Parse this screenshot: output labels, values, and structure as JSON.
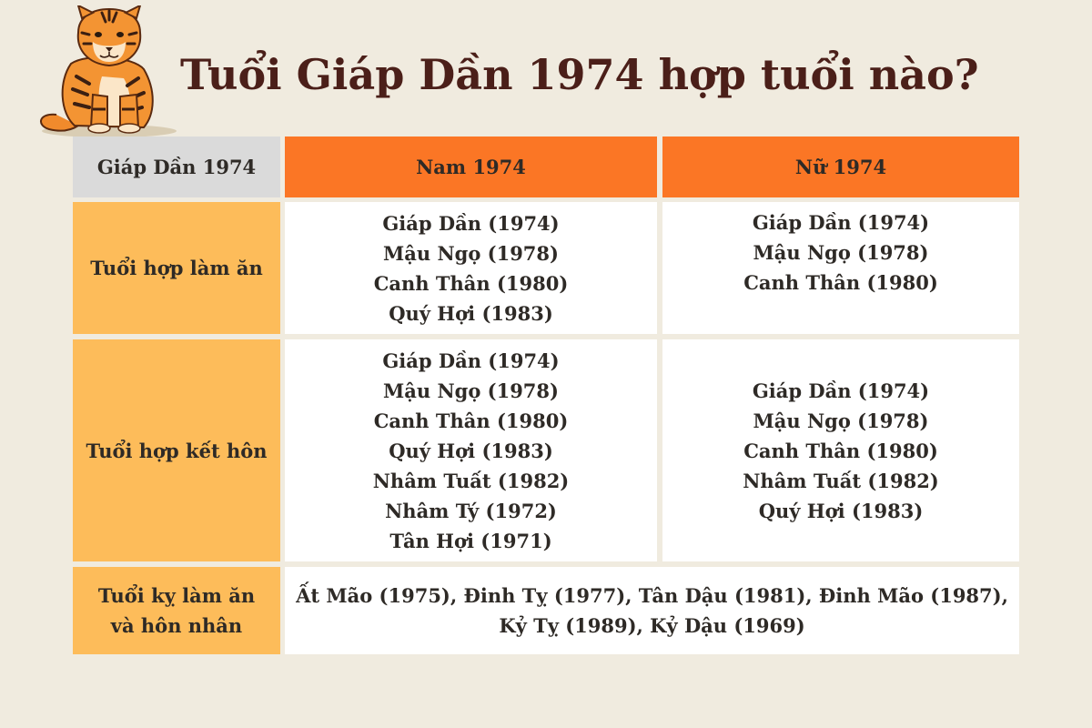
{
  "title": "Tuổi Giáp Dần 1974 hợp tuổi nào?",
  "table": {
    "header": {
      "col0": "Giáp Dần 1974",
      "col1": "Nam 1974",
      "col2": "Nữ 1974"
    },
    "rows": [
      {
        "label": "Tuổi hợp làm ăn",
        "male": [
          "Giáp Dần (1974)",
          "Mậu Ngọ (1978)",
          "Canh Thân (1980)",
          "Quý Hợi (1983)"
        ],
        "female": [
          "Giáp Dần (1974)",
          "Mậu Ngọ (1978)",
          "Canh Thân (1980)"
        ]
      },
      {
        "label": "Tuổi hợp kết hôn",
        "male": [
          "Giáp Dần (1974)",
          "Mậu Ngọ (1978)",
          "Canh Thân (1980)",
          "Quý Hợi (1983)",
          "Nhâm Tuất (1982)",
          "Nhâm Tý (1972)",
          "Tân Hợi (1971)"
        ],
        "female": [
          "Giáp Dần (1974)",
          "Mậu Ngọ (1978)",
          "Canh Thân (1980)",
          "Nhâm Tuất (1982)",
          "Quý Hợi (1983)"
        ]
      }
    ],
    "avoid": {
      "label_line1": "Tuổi kỵ làm ăn",
      "label_line2": "và hôn nhân",
      "value": "Ất Mão (1975), Đinh Tỵ (1977), Tân Dậu (1981), Đinh Mão (1987), Kỷ Tỵ (1989), Kỷ Dậu (1969)"
    }
  },
  "colors": {
    "background": "#f0ebdf",
    "title": "#4b1f19",
    "header_grey": "#dadada",
    "header_orange": "#fb7625",
    "label_yellow": "#fdbc5a",
    "cell_white": "#ffffff"
  },
  "icons": {
    "mascot": "tiger-illustration"
  }
}
